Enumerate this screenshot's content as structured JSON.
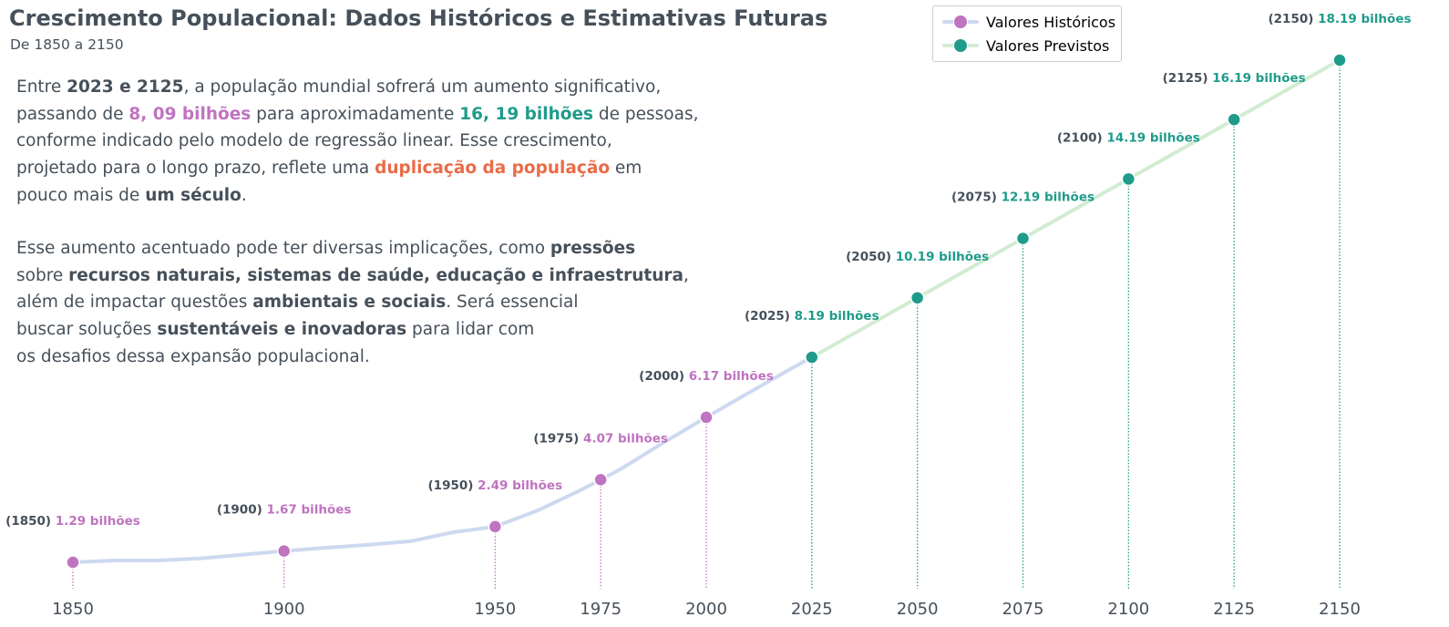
{
  "header": {
    "title": "Crescimento Populacional: Dados Históricos e Estimativas Futuras",
    "subtitle": "De 1850 a 2150"
  },
  "paragraph1": {
    "t1": "Entre ",
    "b1": "2023 e 2125",
    "t2": ", a população mundial sofrerá um aumento significativo,",
    "t3": "passando de ",
    "hl1": "8, 09 bilhões",
    "t4": " para aproximadamente ",
    "hl2": "16, 19 bilhões",
    "t5": " de pessoas,",
    "t6": "conforme indicado pelo modelo de regressão linear. Esse crescimento,",
    "t7": "projetado para o longo prazo, reflete uma ",
    "hl3": "duplicação da população",
    "t8": " em",
    "t9": "pouco mais de ",
    "b2": "um século",
    "t10": "."
  },
  "paragraph2": {
    "t1": "Esse aumento acentuado pode ter diversas implicações, como ",
    "b1": "pressões",
    "t2": "sobre ",
    "b2": "recursos naturais,  sistemas de saúde,  educação e infraestrutura",
    "t3": ",",
    "t4": "além de impactar questões ",
    "b3": "ambientais e sociais",
    "t5": ". Será essencial",
    "t6": "buscar soluções ",
    "b4": "sustentáveis e inovadoras",
    "t7": " para lidar com",
    "t8": "os desafios dessa expansão populacional."
  },
  "legend": {
    "historical": "Valores Históricos",
    "forecast": "Valores Previstos"
  },
  "colors": {
    "historical_line": "#cdd9f0",
    "historical_point": "#bf73c0",
    "forecast_line": "#d2ecd3",
    "forecast_point": "#1f9b8a",
    "text": "#46505a",
    "accent_orange": "#ea6b48"
  },
  "chart_data": {
    "type": "line",
    "title": "Crescimento Populacional: Dados Históricos e Estimativas Futuras",
    "subtitle": "De 1850 a 2150",
    "xlabel": "",
    "ylabel": "",
    "xlim": [
      1845,
      2167
    ],
    "ylim": [
      0.5,
      19.3
    ],
    "xticks": [
      1850,
      1900,
      1950,
      1975,
      2000,
      2025,
      2050,
      2075,
      2100,
      2125,
      2150
    ],
    "grid": false,
    "legend_position": "top-right",
    "unit": "bilhões",
    "series": [
      {
        "name": "Valores Históricos",
        "line_x": [
          1850,
          1860,
          1870,
          1880,
          1890,
          1900,
          1910,
          1920,
          1930,
          1940,
          1950,
          1960,
          1970,
          1975,
          1980,
          1990,
          2000,
          2010,
          2020,
          2025
        ],
        "line_y": [
          1.29,
          1.35,
          1.35,
          1.42,
          1.54,
          1.67,
          1.78,
          1.88,
          2.0,
          2.3,
          2.49,
          3.03,
          3.7,
          4.07,
          4.45,
          5.33,
          6.17,
          6.99,
          7.8,
          8.19
        ],
        "points": [
          {
            "x": 1850,
            "y": 1.29,
            "year": "(1850)",
            "label": "1.29 bilhões"
          },
          {
            "x": 1900,
            "y": 1.67,
            "year": "(1900)",
            "label": "1.67 bilhões"
          },
          {
            "x": 1950,
            "y": 2.49,
            "year": "(1950)",
            "label": "2.49 bilhões"
          },
          {
            "x": 1975,
            "y": 4.07,
            "year": "(1975)",
            "label": "4.07 bilhões"
          },
          {
            "x": 2000,
            "y": 6.17,
            "year": "(2000)",
            "label": "6.17 bilhões"
          }
        ]
      },
      {
        "name": "Valores Previstos",
        "line_x": [
          2025,
          2050,
          2075,
          2100,
          2125,
          2150
        ],
        "line_y": [
          8.19,
          10.19,
          12.19,
          14.19,
          16.19,
          18.19
        ],
        "points": [
          {
            "x": 2025,
            "y": 8.19,
            "year": "(2025)",
            "label": "8.19 bilhões"
          },
          {
            "x": 2050,
            "y": 10.19,
            "year": "(2050)",
            "label": "10.19 bilhões"
          },
          {
            "x": 2075,
            "y": 12.19,
            "year": "(2075)",
            "label": "12.19 bilhões"
          },
          {
            "x": 2100,
            "y": 14.19,
            "year": "(2100)",
            "label": "14.19 bilhões"
          },
          {
            "x": 2125,
            "y": 16.19,
            "year": "(2125)",
            "label": "16.19 bilhões"
          },
          {
            "x": 2150,
            "y": 18.19,
            "year": "(2150)",
            "label": "18.19 bilhões"
          }
        ]
      }
    ]
  }
}
